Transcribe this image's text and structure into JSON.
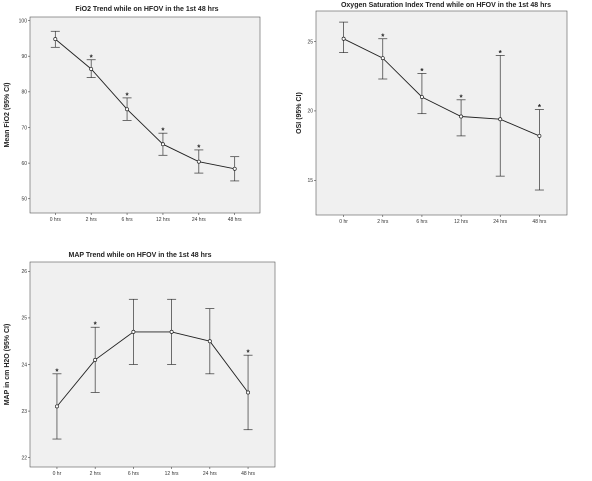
{
  "chart_data": [
    {
      "type": "line",
      "title": "FiO2 Trend while on HFOV in the 1st 48 hrs",
      "xlabel": "",
      "ylabel": "Mean FiO2 (95% CI)",
      "categories": [
        "0 hrs",
        "2 hrs",
        "6 hrs",
        "12 hrs",
        "24 hrs",
        "48 hrs"
      ],
      "values": [
        94.8,
        86.4,
        75.1,
        65.3,
        60.4,
        58.4
      ],
      "ci_low": [
        92.5,
        84.0,
        72.0,
        62.2,
        57.2,
        55.0
      ],
      "ci_high": [
        97.0,
        89.0,
        78.3,
        68.4,
        63.7,
        61.8
      ],
      "significant": [
        false,
        true,
        true,
        true,
        true,
        false
      ],
      "marker": "*",
      "ylim": [
        46,
        101
      ],
      "yticks": [
        "50",
        "60",
        "70",
        "80",
        "90",
        "100"
      ],
      "grid": false,
      "background": "#f0f0f0"
    },
    {
      "type": "line",
      "title": "Oxygen Saturation Index Trend while on HFOV in the 1st 48 hrs",
      "xlabel": "",
      "ylabel": "OSI (95% CI)",
      "categories": [
        "0 hr",
        "2 hrs",
        "6 hrs",
        "12 hrs",
        "24 hrs",
        "48 hrs"
      ],
      "values": [
        25.2,
        23.8,
        21.0,
        19.6,
        19.4,
        18.2
      ],
      "ci_low": [
        24.2,
        22.3,
        19.8,
        18.2,
        15.3,
        14.3
      ],
      "ci_high": [
        26.4,
        25.2,
        22.7,
        20.8,
        24.0,
        20.1
      ],
      "significant": [
        false,
        true,
        true,
        true,
        true,
        true
      ],
      "marker": "*",
      "ylim": [
        12.5,
        27.2
      ],
      "yticks": [
        "15",
        "20",
        "25"
      ],
      "grid": false,
      "background": "#f0f0f0"
    },
    {
      "type": "line",
      "title": "MAP Trend while on HFOV in the 1st 48 hrs",
      "xlabel": "",
      "ylabel": "MAP in cm H2O (95% CI)",
      "categories": [
        "0 hr",
        "2 hrs",
        "6 hrs",
        "12 hrs",
        "24 hrs",
        "48 hrs"
      ],
      "values": [
        23.1,
        24.1,
        24.7,
        24.7,
        24.5,
        23.4
      ],
      "ci_low": [
        22.4,
        23.4,
        24.0,
        24.0,
        23.8,
        22.6
      ],
      "ci_high": [
        23.8,
        24.8,
        25.4,
        25.4,
        25.2,
        24.2
      ],
      "significant": [
        true,
        true,
        false,
        false,
        false,
        true
      ],
      "marker": "*",
      "ylim": [
        21.8,
        26.2
      ],
      "yticks": [
        "22",
        "23",
        "24",
        "25",
        "26"
      ],
      "grid": false,
      "background": "#f0f0f0"
    }
  ]
}
